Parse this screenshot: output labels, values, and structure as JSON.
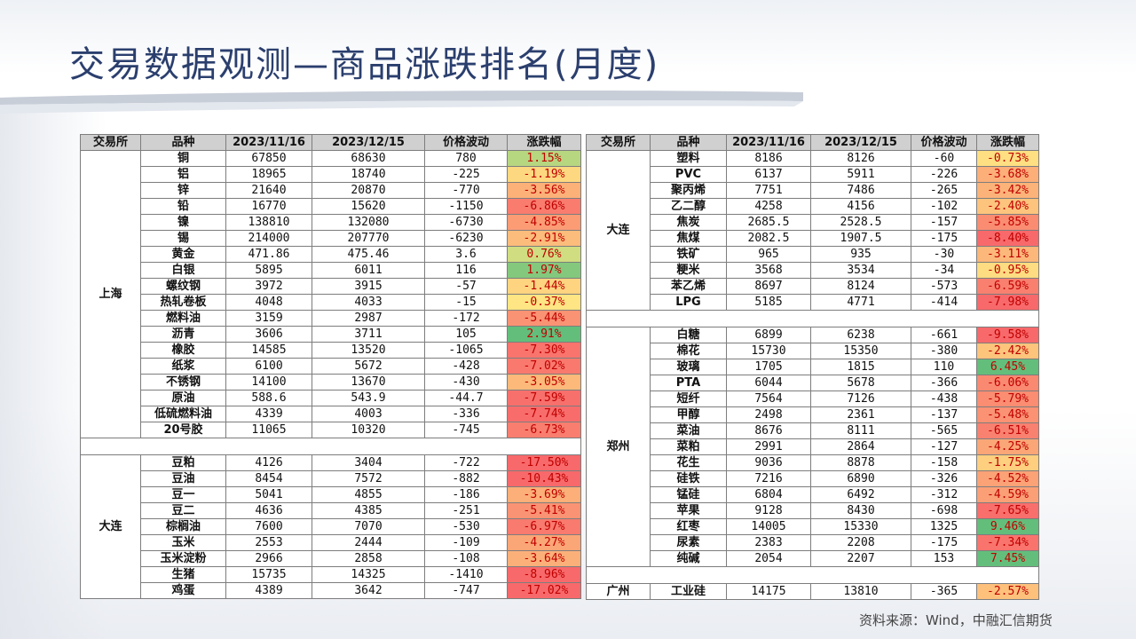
{
  "title": "交易数据观测—商品涨跌排名(月度)",
  "source": "资料来源：Wind，中融汇信期货",
  "headers": [
    "交易所",
    "品种",
    "2023/11/16",
    "2023/12/15",
    "价格波动",
    "涨跌幅"
  ],
  "colors": {
    "up": "#63be7b",
    "down": "#f8696b",
    "neutral": "#ffeb84",
    "pct_text": "#c00000"
  },
  "left_table": {
    "groups": [
      {
        "exchange": "上海",
        "rows": [
          [
            "铜",
            "67850",
            "68630",
            "780",
            "1.15%"
          ],
          [
            "铝",
            "18965",
            "18740",
            "-225",
            "-1.19%"
          ],
          [
            "锌",
            "21640",
            "20870",
            "-770",
            "-3.56%"
          ],
          [
            "铅",
            "16770",
            "15620",
            "-1150",
            "-6.86%"
          ],
          [
            "镍",
            "138810",
            "132080",
            "-6730",
            "-4.85%"
          ],
          [
            "锡",
            "214000",
            "207770",
            "-6230",
            "-2.91%"
          ],
          [
            "黄金",
            "471.86",
            "475.46",
            "3.6",
            "0.76%"
          ],
          [
            "白银",
            "5895",
            "6011",
            "116",
            "1.97%"
          ],
          [
            "螺纹钢",
            "3972",
            "3915",
            "-57",
            "-1.44%"
          ],
          [
            "热轧卷板",
            "4048",
            "4033",
            "-15",
            "-0.37%"
          ],
          [
            "燃料油",
            "3159",
            "2987",
            "-172",
            "-5.44%"
          ],
          [
            "沥青",
            "3606",
            "3711",
            "105",
            "2.91%"
          ],
          [
            "橡胶",
            "14585",
            "13520",
            "-1065",
            "-7.30%"
          ],
          [
            "纸浆",
            "6100",
            "5672",
            "-428",
            "-7.02%"
          ],
          [
            "不锈钢",
            "14100",
            "13670",
            "-430",
            "-3.05%"
          ],
          [
            "原油",
            "588.6",
            "543.9",
            "-44.7",
            "-7.59%"
          ],
          [
            "低硫燃料油",
            "4339",
            "4003",
            "-336",
            "-7.74%"
          ],
          [
            "20号胶",
            "11065",
            "10320",
            "-745",
            "-6.73%"
          ]
        ]
      },
      {
        "exchange": "大连",
        "rows": [
          [
            "豆粕",
            "4126",
            "3404",
            "-722",
            "-17.50%"
          ],
          [
            "豆油",
            "8454",
            "7572",
            "-882",
            "-10.43%"
          ],
          [
            "豆一",
            "5041",
            "4855",
            "-186",
            "-3.69%"
          ],
          [
            "豆二",
            "4636",
            "4385",
            "-251",
            "-5.41%"
          ],
          [
            "棕榈油",
            "7600",
            "7070",
            "-530",
            "-6.97%"
          ],
          [
            "玉米",
            "2553",
            "2444",
            "-109",
            "-4.27%"
          ],
          [
            "玉米淀粉",
            "2966",
            "2858",
            "-108",
            "-3.64%"
          ],
          [
            "生猪",
            "15735",
            "14325",
            "-1410",
            "-8.96%"
          ],
          [
            "鸡蛋",
            "4389",
            "3642",
            "-747",
            "-17.02%"
          ]
        ]
      }
    ]
  },
  "right_table": {
    "groups": [
      {
        "exchange": "大连",
        "rows": [
          [
            "塑料",
            "8186",
            "8126",
            "-60",
            "-0.73%"
          ],
          [
            "PVC",
            "6137",
            "5911",
            "-226",
            "-3.68%"
          ],
          [
            "聚丙烯",
            "7751",
            "7486",
            "-265",
            "-3.42%"
          ],
          [
            "乙二醇",
            "4258",
            "4156",
            "-102",
            "-2.40%"
          ],
          [
            "焦炭",
            "2685.5",
            "2528.5",
            "-157",
            "-5.85%"
          ],
          [
            "焦煤",
            "2082.5",
            "1907.5",
            "-175",
            "-8.40%"
          ],
          [
            "铁矿",
            "965",
            "935",
            "-30",
            "-3.11%"
          ],
          [
            "粳米",
            "3568",
            "3534",
            "-34",
            "-0.95%"
          ],
          [
            "苯乙烯",
            "8697",
            "8124",
            "-573",
            "-6.59%"
          ],
          [
            "LPG",
            "5185",
            "4771",
            "-414",
            "-7.98%"
          ]
        ]
      },
      {
        "exchange": "郑州",
        "rows": [
          [
            "白糖",
            "6899",
            "6238",
            "-661",
            "-9.58%"
          ],
          [
            "棉花",
            "15730",
            "15350",
            "-380",
            "-2.42%"
          ],
          [
            "玻璃",
            "1705",
            "1815",
            "110",
            "6.45%"
          ],
          [
            "PTA",
            "6044",
            "5678",
            "-366",
            "-6.06%"
          ],
          [
            "短纤",
            "7564",
            "7126",
            "-438",
            "-5.79%"
          ],
          [
            "甲醇",
            "2498",
            "2361",
            "-137",
            "-5.48%"
          ],
          [
            "菜油",
            "8676",
            "8111",
            "-565",
            "-6.51%"
          ],
          [
            "菜粕",
            "2991",
            "2864",
            "-127",
            "-4.25%"
          ],
          [
            "花生",
            "9036",
            "8878",
            "-158",
            "-1.75%"
          ],
          [
            "硅铁",
            "7216",
            "6890",
            "-326",
            "-4.52%"
          ],
          [
            "锰硅",
            "6804",
            "6492",
            "-312",
            "-4.59%"
          ],
          [
            "苹果",
            "9128",
            "8430",
            "-698",
            "-7.65%"
          ],
          [
            "红枣",
            "14005",
            "15330",
            "1325",
            "9.46%"
          ],
          [
            "尿素",
            "2383",
            "2208",
            "-175",
            "-7.34%"
          ],
          [
            "纯碱",
            "2054",
            "2207",
            "153",
            "7.45%"
          ]
        ]
      },
      {
        "exchange": "广州",
        "rows": [
          [
            "工业硅",
            "14175",
            "13810",
            "-365",
            "-2.57%"
          ]
        ]
      }
    ]
  }
}
